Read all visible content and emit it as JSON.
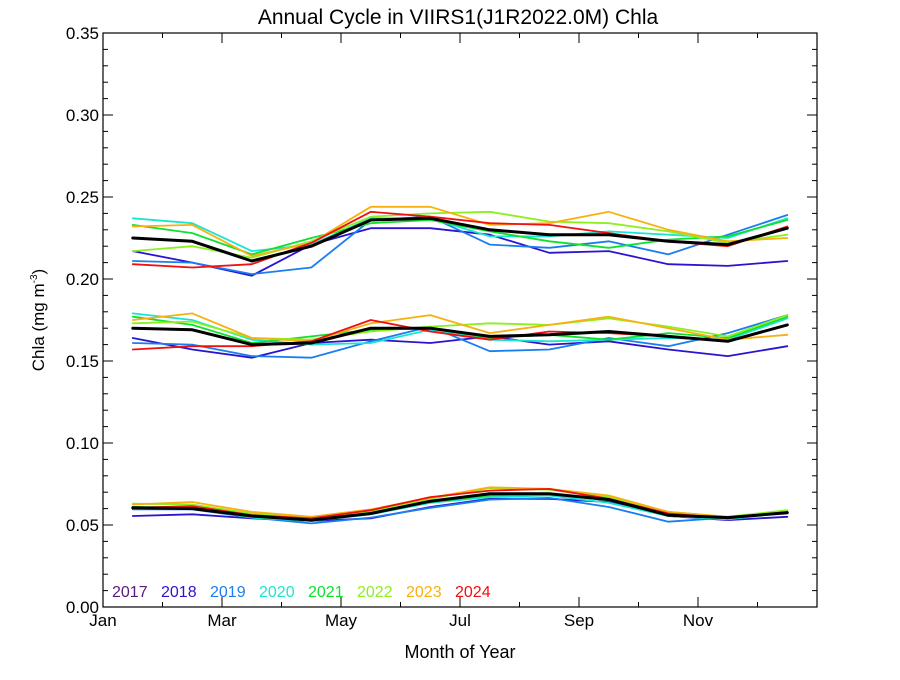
{
  "chart_data": {
    "type": "line",
    "title": "Annual Cycle in VIIRS1(J1R2022.0M) Chla",
    "xlabel": "Month of Year",
    "ylabel": "Chla (mg m",
    "ylabel_sup": "-3",
    "ylabel_close": ")",
    "xlim": [
      1,
      13
    ],
    "ylim": [
      0.0,
      0.35
    ],
    "x_ticks": [
      {
        "value": 1,
        "label": "Jan"
      },
      {
        "value": 3,
        "label": "Mar"
      },
      {
        "value": 5,
        "label": "May"
      },
      {
        "value": 7,
        "label": "Jul"
      },
      {
        "value": 9,
        "label": "Sep"
      },
      {
        "value": 11,
        "label": "Nov"
      }
    ],
    "y_ticks": [
      {
        "value": 0.0,
        "label": "0.00"
      },
      {
        "value": 0.05,
        "label": "0.05"
      },
      {
        "value": 0.1,
        "label": "0.10"
      },
      {
        "value": 0.15,
        "label": "0.15"
      },
      {
        "value": 0.2,
        "label": "0.20"
      },
      {
        "value": 0.25,
        "label": "0.25"
      },
      {
        "value": 0.3,
        "label": "0.30"
      },
      {
        "value": 0.35,
        "label": "0.35"
      }
    ],
    "x": [
      1.5,
      2.5,
      3.5,
      4.5,
      5.5,
      6.5,
      7.5,
      8.5,
      9.5,
      10.5,
      11.5,
      12.5
    ],
    "legend": [
      {
        "label": "2017",
        "color": "#5a1a7a"
      },
      {
        "label": "2018",
        "color": "#2a14d0"
      },
      {
        "label": "2019",
        "color": "#1a7ef0"
      },
      {
        "label": "2020",
        "color": "#18e6d2"
      },
      {
        "label": "2021",
        "color": "#10e030"
      },
      {
        "label": "2022",
        "color": "#8cf020"
      },
      {
        "label": "2023",
        "color": "#f8b010"
      },
      {
        "label": "2024",
        "color": "#f01010"
      }
    ],
    "groups": [
      {
        "series": [
          {
            "color": "#2a14d0",
            "values": [
              0.217,
              0.21,
              0.202,
              0.221,
              0.231,
              0.231,
              0.227,
              0.216,
              0.217,
              0.209,
              0.208,
              0.211
            ]
          },
          {
            "color": "#1a7ef0",
            "values": [
              0.211,
              0.21,
              0.203,
              0.207,
              0.236,
              0.238,
              0.221,
              0.219,
              0.223,
              0.215,
              0.227,
              0.239
            ]
          },
          {
            "color": "#18e6d2",
            "values": [
              0.237,
              0.234,
              0.217,
              0.221,
              0.237,
              0.237,
              0.226,
              0.226,
              0.229,
              0.227,
              0.225,
              0.237
            ]
          },
          {
            "color": "#10e030",
            "values": [
              0.233,
              0.228,
              0.215,
              0.225,
              0.234,
              0.236,
              0.229,
              0.223,
              0.219,
              0.224,
              0.226,
              0.236
            ]
          },
          {
            "color": "#8cf020",
            "values": [
              0.217,
              0.22,
              0.213,
              0.223,
              0.238,
              0.24,
              0.241,
              0.235,
              0.234,
              0.229,
              0.222,
              0.227
            ]
          },
          {
            "color": "#f8b010",
            "values": [
              0.232,
              0.233,
              0.214,
              0.222,
              0.244,
              0.244,
              0.233,
              0.234,
              0.241,
              0.23,
              0.223,
              0.225
            ]
          },
          {
            "color": "#f01010",
            "values": [
              0.209,
              0.207,
              0.209,
              0.222,
              0.241,
              0.238,
              0.234,
              0.233,
              0.228,
              0.223,
              0.22,
              0.232
            ]
          },
          {
            "color": "#000000",
            "mean": true,
            "values": [
              0.225,
              0.223,
              0.211,
              0.22,
              0.236,
              0.237,
              0.23,
              0.227,
              0.227,
              0.223,
              0.221,
              0.231
            ]
          }
        ]
      },
      {
        "series": [
          {
            "color": "#2a14d0",
            "values": [
              0.164,
              0.157,
              0.152,
              0.161,
              0.163,
              0.161,
              0.165,
              0.16,
              0.162,
              0.157,
              0.153,
              0.159
            ]
          },
          {
            "color": "#1a7ef0",
            "values": [
              0.161,
              0.16,
              0.153,
              0.152,
              0.162,
              0.171,
              0.156,
              0.157,
              0.164,
              0.159,
              0.167,
              0.178
            ]
          },
          {
            "color": "#18e6d2",
            "values": [
              0.179,
              0.175,
              0.163,
              0.16,
              0.161,
              0.169,
              0.163,
              0.162,
              0.163,
              0.164,
              0.163,
              0.176
            ]
          },
          {
            "color": "#10e030",
            "values": [
              0.177,
              0.172,
              0.161,
              0.165,
              0.169,
              0.17,
              0.164,
              0.166,
              0.163,
              0.167,
              0.164,
              0.177
            ]
          },
          {
            "color": "#8cf020",
            "values": [
              0.173,
              0.174,
              0.164,
              0.163,
              0.168,
              0.171,
              0.173,
              0.172,
              0.176,
              0.171,
              0.165,
              0.178
            ]
          },
          {
            "color": "#f8b010",
            "values": [
              0.175,
              0.179,
              0.164,
              0.162,
              0.173,
              0.178,
              0.167,
              0.172,
              0.177,
              0.17,
              0.163,
              0.166
            ]
          },
          {
            "color": "#f01010",
            "values": [
              0.157,
              0.159,
              0.159,
              0.162,
              0.175,
              0.168,
              0.163,
              0.168,
              0.167,
              0.165,
              0.162,
              0.172
            ]
          },
          {
            "color": "#000000",
            "mean": true,
            "values": [
              0.17,
              0.169,
              0.16,
              0.161,
              0.17,
              0.17,
              0.165,
              0.166,
              0.168,
              0.165,
              0.162,
              0.172
            ]
          }
        ]
      },
      {
        "series": [
          {
            "color": "#2a14d0",
            "values": [
              0.0555,
              0.0565,
              0.054,
              0.0525,
              0.054,
              0.061,
              0.066,
              0.066,
              0.064,
              0.0555,
              0.053,
              0.055
            ]
          },
          {
            "color": "#1a7ef0",
            "values": [
              0.0595,
              0.0595,
              0.0545,
              0.051,
              0.0545,
              0.0605,
              0.0655,
              0.0665,
              0.061,
              0.052,
              0.0545,
              0.0585
            ]
          },
          {
            "color": "#18e6d2",
            "values": [
              0.061,
              0.0605,
              0.0545,
              0.0525,
              0.0565,
              0.0635,
              0.067,
              0.068,
              0.0635,
              0.0555,
              0.0535,
              0.0575
            ]
          },
          {
            "color": "#10e030",
            "values": [
              0.061,
              0.0605,
              0.055,
              0.053,
              0.057,
              0.064,
              0.068,
              0.069,
              0.065,
              0.057,
              0.054,
              0.058
            ]
          },
          {
            "color": "#8cf020",
            "values": [
              0.063,
              0.0625,
              0.057,
              0.054,
              0.0585,
              0.066,
              0.0725,
              0.0715,
              0.067,
              0.058,
              0.055,
              0.059
            ]
          },
          {
            "color": "#f8b010",
            "values": [
              0.0625,
              0.064,
              0.058,
              0.055,
              0.0595,
              0.0665,
              0.073,
              0.072,
              0.068,
              0.058,
              0.055,
              0.0575
            ]
          },
          {
            "color": "#f01010",
            "values": [
              0.0605,
              0.0615,
              0.056,
              0.054,
              0.059,
              0.067,
              0.071,
              0.072,
              0.066,
              0.057,
              0.054,
              0.058
            ]
          },
          {
            "color": "#000000",
            "mean": true,
            "values": [
              0.0605,
              0.06,
              0.0555,
              0.053,
              0.057,
              0.0645,
              0.069,
              0.069,
              0.0655,
              0.056,
              0.0545,
              0.0575
            ]
          }
        ]
      }
    ]
  }
}
